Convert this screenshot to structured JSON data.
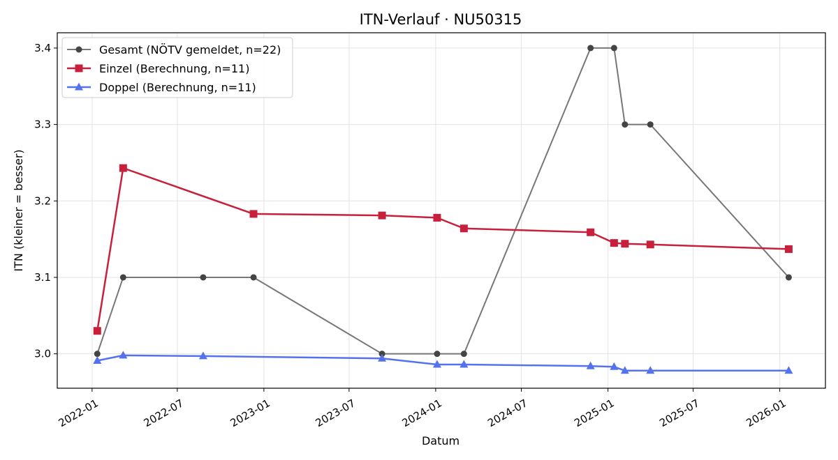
{
  "chart_data": {
    "type": "line",
    "title": "ITN-Verlauf · NU50315",
    "xlabel": "Datum",
    "ylabel": "ITN  (kleiner = besser)",
    "x_axis_type": "date",
    "xlim": [
      "2021-10-19",
      "2026-04-08"
    ],
    "ylim": [
      2.955,
      3.42
    ],
    "grid": true,
    "legend_position": "top-left",
    "x_ticks": [
      "2022-01",
      "2022-07",
      "2023-01",
      "2023-07",
      "2024-01",
      "2024-07",
      "2025-01",
      "2025-07",
      "2026-01"
    ],
    "x_tick_dates": [
      "2022-01-01",
      "2022-07-01",
      "2023-01-01",
      "2023-07-01",
      "2024-01-01",
      "2024-07-01",
      "2025-01-01",
      "2025-07-01",
      "2026-01-01"
    ],
    "y_ticks": [
      3.0,
      3.1,
      3.2,
      3.3,
      3.4
    ],
    "y_tick_labels": [
      "3.0",
      "3.1",
      "3.2",
      "3.3",
      "3.4"
    ],
    "series": [
      {
        "name": "Gesamt (NÖTV gemeldet, n=22)",
        "color": "#777777",
        "marker_color": "#444444",
        "marker": "circle",
        "line_width": 2,
        "points": [
          [
            "2022-01-12",
            3.0
          ],
          [
            "2022-03-08",
            3.1
          ],
          [
            "2022-08-25",
            3.1
          ],
          [
            "2022-12-10",
            3.1
          ],
          [
            "2023-09-09",
            3.0
          ],
          [
            "2024-01-04",
            3.0
          ],
          [
            "2024-03-01",
            3.0
          ],
          [
            "2024-11-25",
            3.4
          ],
          [
            "2025-01-14",
            3.4
          ],
          [
            "2025-02-06",
            3.3
          ],
          [
            "2025-04-01",
            3.3
          ],
          [
            "2026-01-20",
            3.1
          ]
        ]
      },
      {
        "name": "Einzel (Berechnung, n=11)",
        "color": "#c8203c",
        "marker": "square",
        "line_width": 2.5,
        "points": [
          [
            "2022-01-12",
            3.03
          ],
          [
            "2022-03-08",
            3.243
          ],
          [
            "2022-12-10",
            3.183
          ],
          [
            "2023-09-09",
            3.181
          ],
          [
            "2024-01-04",
            3.178
          ],
          [
            "2024-03-01",
            3.164
          ],
          [
            "2024-11-25",
            3.159
          ],
          [
            "2025-01-14",
            3.145
          ],
          [
            "2025-02-06",
            3.144
          ],
          [
            "2025-04-01",
            3.143
          ],
          [
            "2026-01-20",
            3.137
          ]
        ]
      },
      {
        "name": "Doppel (Berechnung, n=11)",
        "color": "#5572ee",
        "marker": "triangle",
        "line_width": 2.5,
        "points": [
          [
            "2022-01-12",
            2.991
          ],
          [
            "2022-03-08",
            2.998
          ],
          [
            "2022-08-25",
            2.997
          ],
          [
            "2023-09-09",
            2.994
          ],
          [
            "2024-01-04",
            2.986
          ],
          [
            "2024-03-01",
            2.986
          ],
          [
            "2024-11-25",
            2.984
          ],
          [
            "2025-01-14",
            2.983
          ],
          [
            "2025-02-06",
            2.978
          ],
          [
            "2025-04-01",
            2.978
          ],
          [
            "2026-01-20",
            2.978
          ]
        ]
      }
    ]
  }
}
